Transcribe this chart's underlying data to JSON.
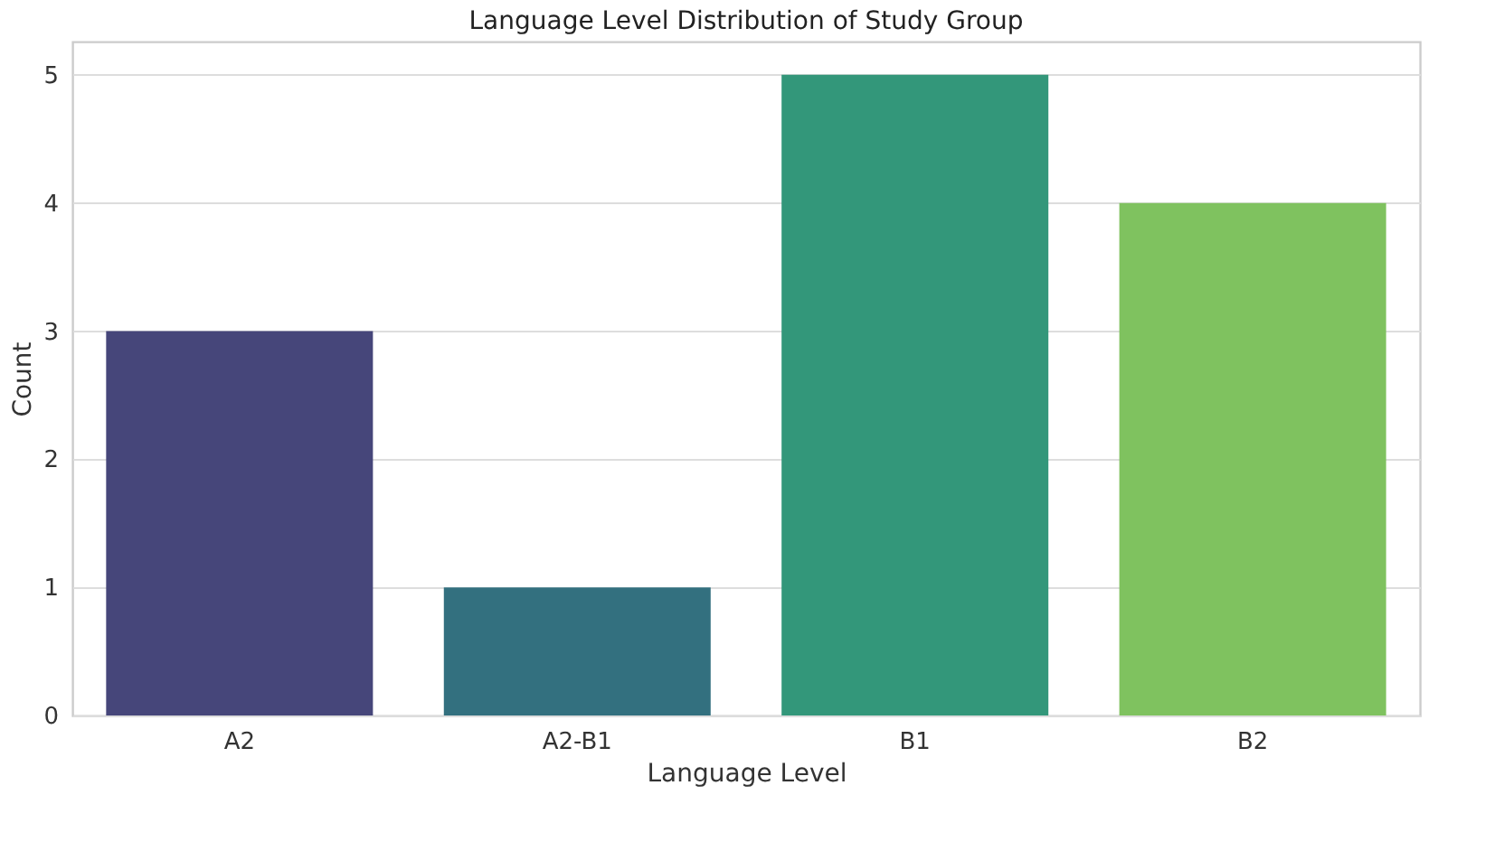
{
  "chart_data": {
    "type": "bar",
    "title": "Language Level Distribution of Study Group",
    "xlabel": "Language Level",
    "ylabel": "Count",
    "categories": [
      "A2",
      "A2-B1",
      "B1",
      "B2"
    ],
    "values": [
      3,
      1,
      5,
      4
    ],
    "colors": [
      "#46467a",
      "#33707f",
      "#33977a",
      "#7fc25f"
    ],
    "ylim": [
      0,
      5.26
    ],
    "yticks": [
      0,
      1,
      2,
      3,
      4,
      5
    ],
    "grid": "y"
  }
}
